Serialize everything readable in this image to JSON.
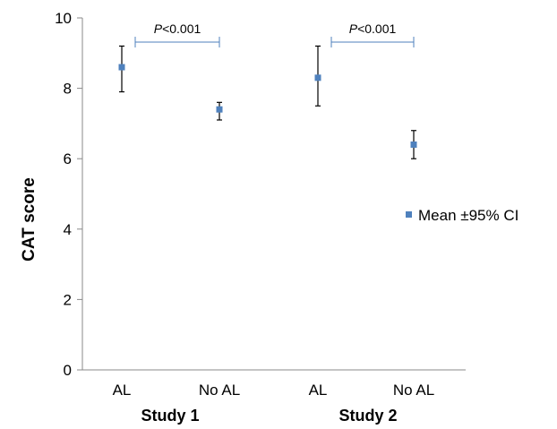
{
  "chart_data": {
    "type": "scatter",
    "ylabel": "CAT score",
    "ylim": [
      0,
      10
    ],
    "yticks": [
      "0",
      "2",
      "4",
      "6",
      "8",
      "10"
    ],
    "groups": [
      {
        "label": "Study 1",
        "categories": [
          "AL",
          "No AL"
        ]
      },
      {
        "label": "Study 2",
        "categories": [
          "AL",
          "No AL"
        ]
      }
    ],
    "series": [
      {
        "name": "Mean ±95% CI",
        "color": "#4f81bd",
        "points": [
          {
            "category": "AL",
            "group": "Study 1",
            "mean": 8.6,
            "lower": 7.9,
            "upper": 9.2
          },
          {
            "category": "No AL",
            "group": "Study 1",
            "mean": 7.4,
            "lower": 7.1,
            "upper": 7.6
          },
          {
            "category": "AL",
            "group": "Study 2",
            "mean": 8.3,
            "lower": 7.5,
            "upper": 9.2
          },
          {
            "category": "No AL",
            "group": "Study 2",
            "mean": 6.4,
            "lower": 6.0,
            "upper": 6.8
          }
        ]
      }
    ],
    "annotations": [
      {
        "group": "Study 1",
        "p_symbol": "P",
        "p_rest": "<0.001"
      },
      {
        "group": "Study 2",
        "p_symbol": "P",
        "p_rest": "<0.001"
      }
    ],
    "legend_position": "right",
    "grid": false,
    "annotation_color": "#4f81bd",
    "axis_color": "#888888"
  }
}
